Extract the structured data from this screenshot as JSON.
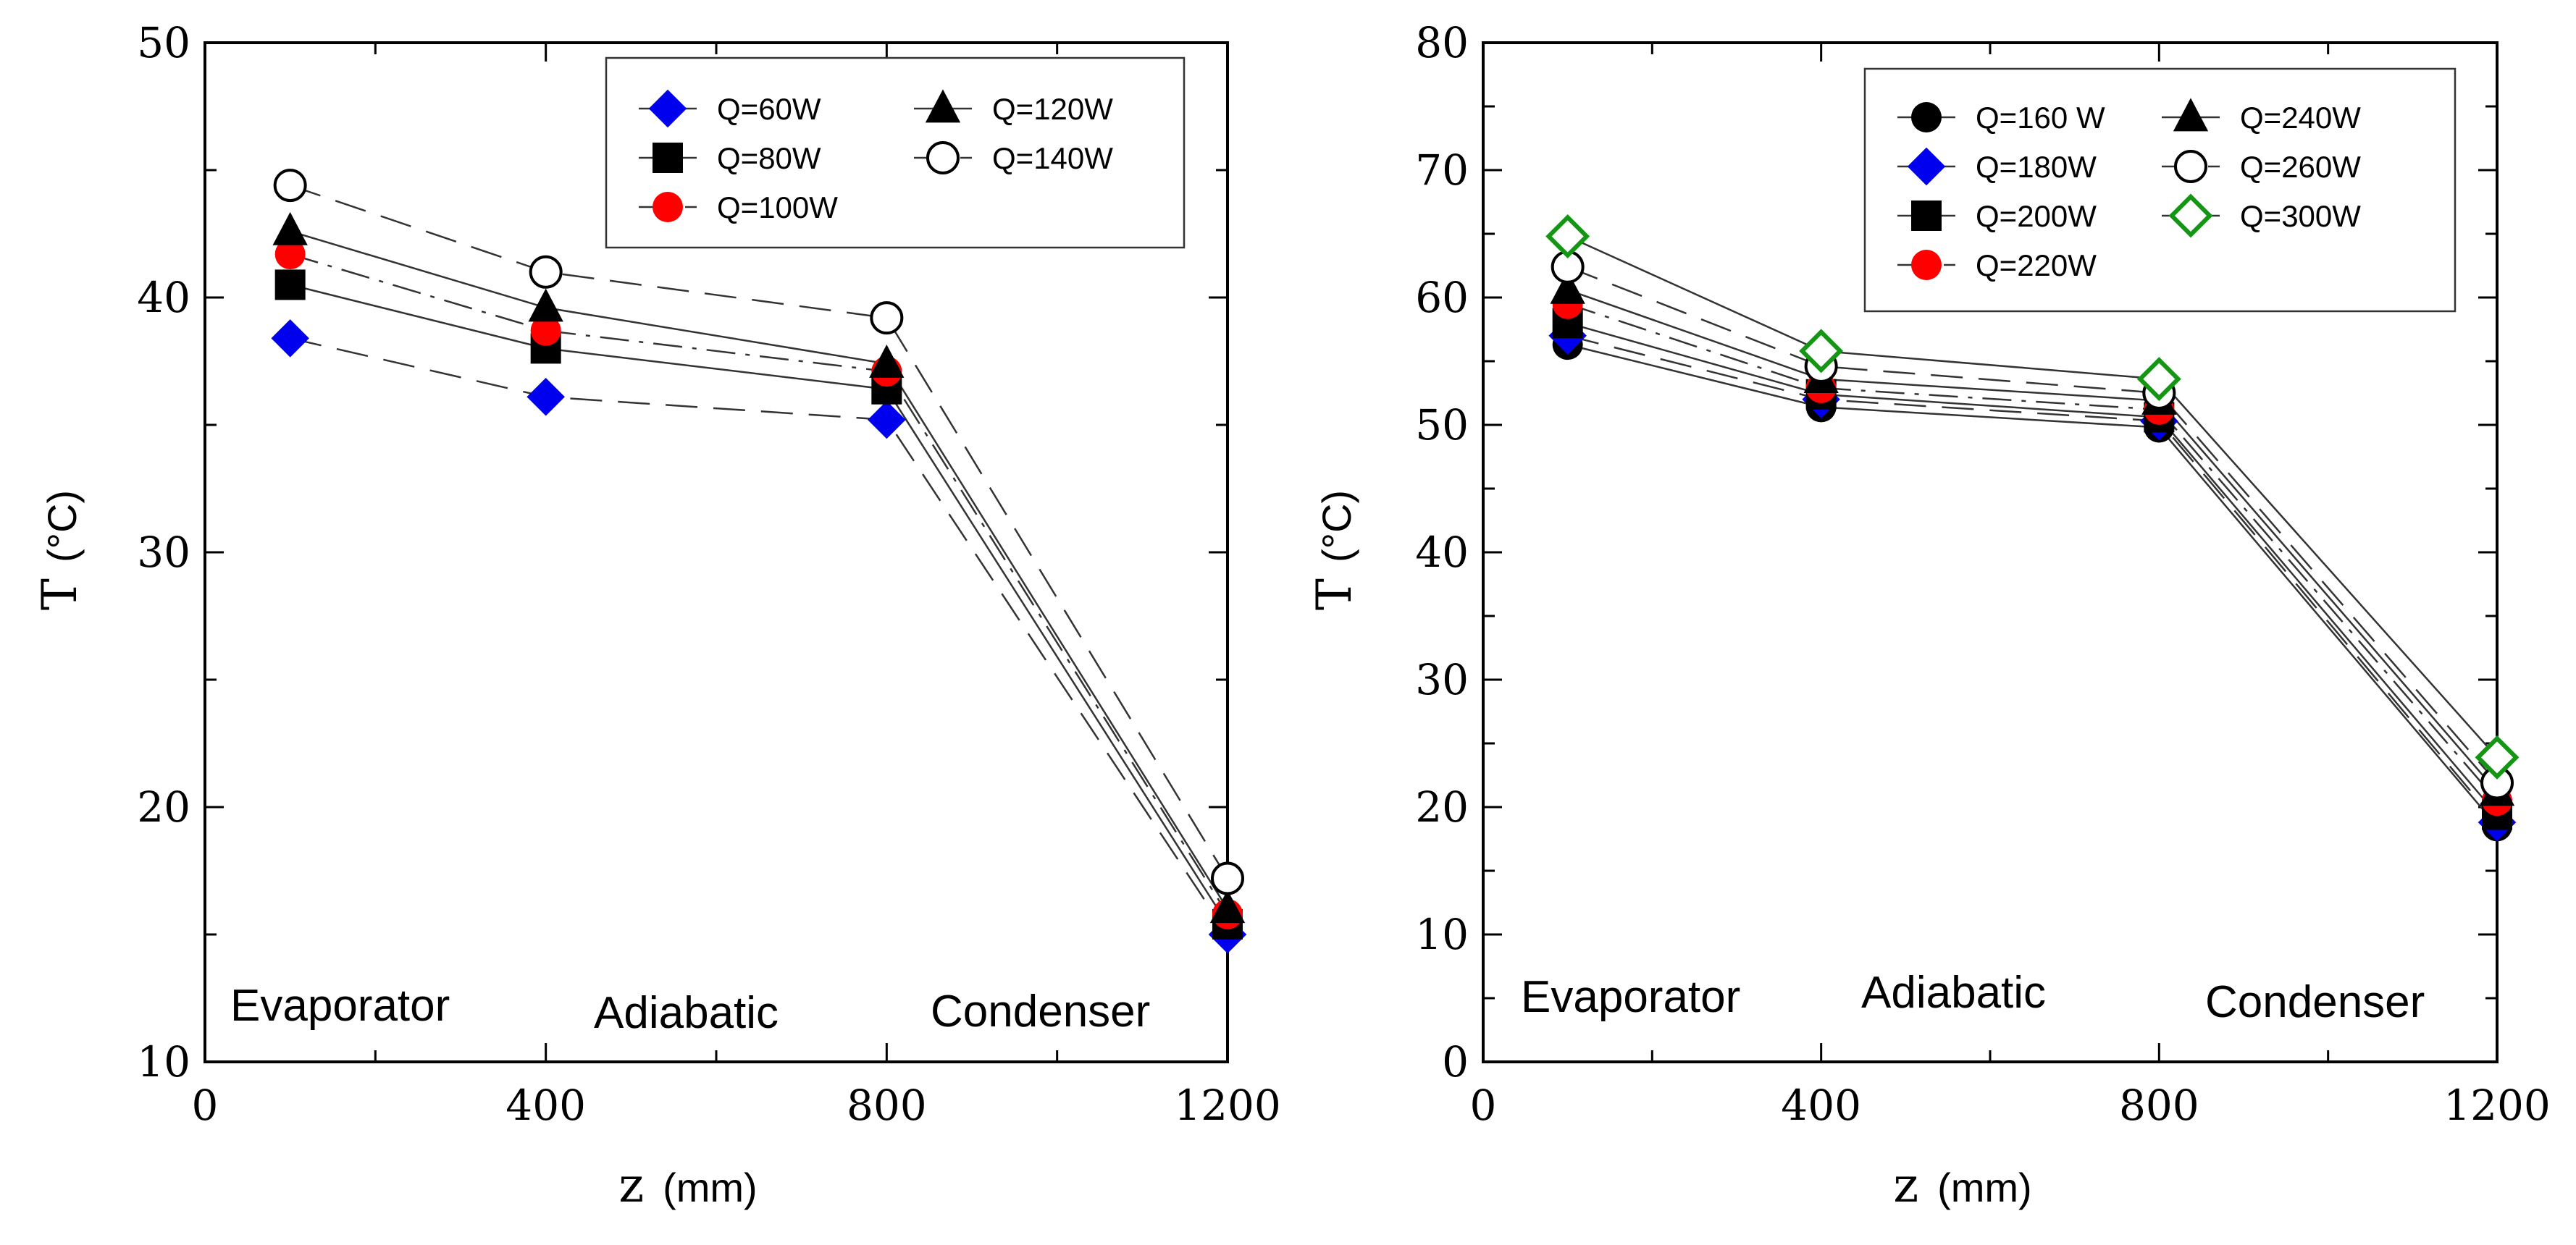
{
  "chart_data": [
    {
      "type": "line",
      "xlabel": "z",
      "xunit": "(mm)",
      "ylabel": "T",
      "yunit": "(°C)",
      "xlim": [
        0,
        1200
      ],
      "ylim": [
        10,
        50
      ],
      "xticks": [
        0,
        400,
        800,
        1200
      ],
      "yticks": [
        10,
        20,
        30,
        40,
        50
      ],
      "x": [
        100,
        400,
        800,
        1200
      ],
      "legend_position": "top-right",
      "legend_columns": 2,
      "regions": [
        {
          "label": "Evaporator",
          "x": 200
        },
        {
          "label": "Adiabatic",
          "x": 600
        },
        {
          "label": "Condenser",
          "x": 1000
        }
      ],
      "series": [
        {
          "name": "Q=60W",
          "values": [
            38.4,
            36.1,
            35.2,
            15.0
          ],
          "marker": "diamond",
          "color": "#0000ee",
          "dash": "long-dash"
        },
        {
          "name": "Q=80W",
          "values": [
            40.5,
            38.0,
            36.4,
            15.4
          ],
          "marker": "square",
          "color": "#000000",
          "dash": "solid"
        },
        {
          "name": "Q=100W",
          "values": [
            41.7,
            38.7,
            37.1,
            15.8
          ],
          "marker": "circle",
          "color": "#ff0000",
          "dash": "dash-dot"
        },
        {
          "name": "Q=120W",
          "values": [
            42.6,
            39.6,
            37.4,
            16.0
          ],
          "marker": "triangle",
          "color": "#000000",
          "dash": "solid"
        },
        {
          "name": "Q=140W",
          "values": [
            44.4,
            41.0,
            39.2,
            17.2
          ],
          "marker": "open-circle",
          "color": "#000000",
          "dash": "long-dash"
        }
      ]
    },
    {
      "type": "line",
      "xlabel": "z",
      "xunit": "(mm)",
      "ylabel": "T",
      "yunit": "(°C)",
      "xlim": [
        0,
        1200
      ],
      "ylim": [
        0,
        80
      ],
      "xticks": [
        0,
        400,
        800,
        1200
      ],
      "yticks": [
        0,
        10,
        20,
        30,
        40,
        50,
        60,
        70,
        80
      ],
      "x": [
        100,
        400,
        800,
        1200
      ],
      "legend_position": "top-right",
      "legend_columns": 2,
      "regions": [
        {
          "label": "Evaporator",
          "x": 200
        },
        {
          "label": "Adiabatic",
          "x": 600
        },
        {
          "label": "Condenser",
          "x": 1000
        }
      ],
      "series": [
        {
          "name": "Q=160 W",
          "values": [
            56.3,
            51.4,
            49.8,
            18.5
          ],
          "marker": "circle",
          "color": "#000000",
          "dash": "solid"
        },
        {
          "name": "Q=180W",
          "values": [
            57.0,
            52.0,
            50.3,
            18.8
          ],
          "marker": "diamond",
          "color": "#0000ee",
          "dash": "long-dash"
        },
        {
          "name": "Q=200W",
          "values": [
            58.0,
            52.4,
            50.6,
            19.4
          ],
          "marker": "square",
          "color": "#000000",
          "dash": "solid"
        },
        {
          "name": "Q=220W",
          "values": [
            59.5,
            52.9,
            51.2,
            20.5
          ],
          "marker": "circle",
          "color": "#ff0000",
          "dash": "dash-dot"
        },
        {
          "name": "Q=240W",
          "values": [
            60.6,
            53.6,
            51.9,
            21.2
          ],
          "marker": "triangle",
          "color": "#000000",
          "dash": "solid"
        },
        {
          "name": "Q=260W",
          "values": [
            62.4,
            54.6,
            52.5,
            21.9
          ],
          "marker": "open-circle",
          "color": "#000000",
          "dash": "long-dash"
        },
        {
          "name": "Q=300W",
          "values": [
            64.8,
            55.8,
            53.6,
            23.9
          ],
          "marker": "open-diamond",
          "color": "#149614",
          "dash": "solid"
        }
      ]
    }
  ]
}
